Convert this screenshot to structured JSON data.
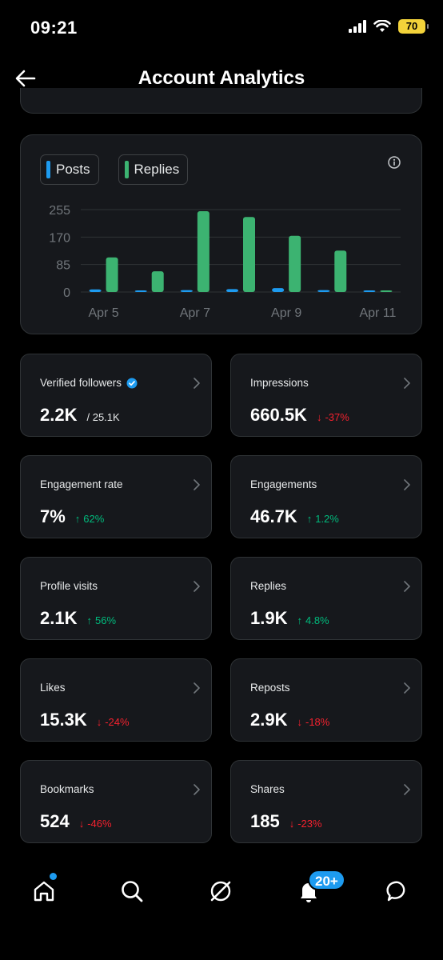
{
  "status_bar": {
    "time": "09:21",
    "battery": "70"
  },
  "header": {
    "title": "Account Analytics"
  },
  "chart": {
    "legend": [
      {
        "label": "Posts",
        "color": "#1d9bf0"
      },
      {
        "label": "Replies",
        "color": "#3cb371"
      }
    ]
  },
  "chart_data": {
    "type": "bar",
    "x": [
      "Apr 5",
      "Apr 6",
      "Apr 7",
      "Apr 8",
      "Apr 9",
      "Apr 10",
      "Apr 11"
    ],
    "x_tick_labels": [
      "Apr 5",
      "Apr 7",
      "Apr 9",
      "Apr 11"
    ],
    "y_ticks": [
      "255",
      "170",
      "85",
      "0"
    ],
    "ylim": [
      0,
      255
    ],
    "grid": true,
    "series": [
      {
        "name": "Posts",
        "color": "#1d9bf0",
        "values": [
          8,
          2,
          6,
          9,
          12,
          6,
          1
        ]
      },
      {
        "name": "Replies",
        "color": "#3cb371",
        "values": [
          107,
          64,
          250,
          232,
          174,
          128,
          3
        ]
      }
    ]
  },
  "stats": [
    {
      "label": "Verified followers",
      "value": "2.2K",
      "sub": "/ 25.1K",
      "change": "",
      "direction": "none",
      "verified": true
    },
    {
      "label": "Impressions",
      "value": "660.5K",
      "sub": "",
      "change": "-37%",
      "direction": "down"
    },
    {
      "label": "Engagement rate",
      "value": "7%",
      "sub": "",
      "change": "62%",
      "direction": "up"
    },
    {
      "label": "Engagements",
      "value": "46.7K",
      "sub": "",
      "change": "1.2%",
      "direction": "up"
    },
    {
      "label": "Profile visits",
      "value": "2.1K",
      "sub": "",
      "change": "56%",
      "direction": "up"
    },
    {
      "label": "Replies",
      "value": "1.9K",
      "sub": "",
      "change": "4.8%",
      "direction": "up"
    },
    {
      "label": "Likes",
      "value": "15.3K",
      "sub": "",
      "change": "-24%",
      "direction": "down"
    },
    {
      "label": "Reposts",
      "value": "2.9K",
      "sub": "",
      "change": "-18%",
      "direction": "down"
    },
    {
      "label": "Bookmarks",
      "value": "524",
      "sub": "",
      "change": "-46%",
      "direction": "down"
    },
    {
      "label": "Shares",
      "value": "185",
      "sub": "",
      "change": "-23%",
      "direction": "down"
    }
  ],
  "bottom_nav": {
    "notification_badge": "20+",
    "items": [
      "home-icon",
      "search-icon",
      "grok-icon",
      "notifications-icon",
      "messages-icon"
    ]
  }
}
